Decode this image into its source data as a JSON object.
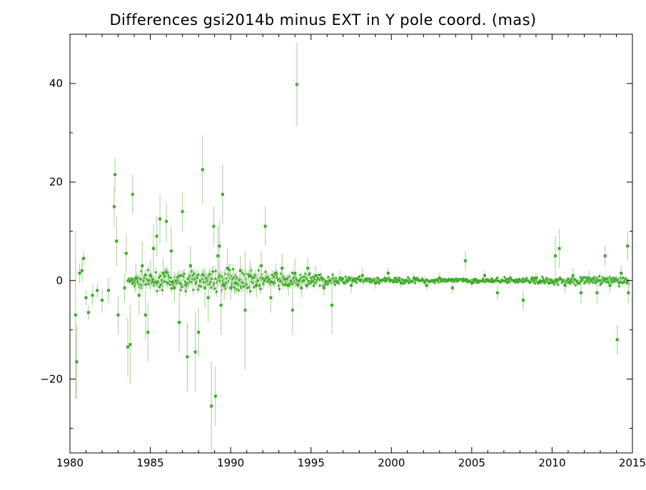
{
  "chart_data": {
    "type": "scatter",
    "title": "Differences gsi2014b minus EXT in Y pole coord. (mas)",
    "xlabel": "",
    "ylabel": "",
    "xlim": [
      1980,
      2015
    ],
    "ylim": [
      -35,
      50
    ],
    "xticks": [
      1980,
      1985,
      1990,
      1995,
      2000,
      2005,
      2010,
      2015
    ],
    "xtick_labels": [
      "1980",
      "1985",
      "1990",
      "1995",
      "2000",
      "2005",
      "2010",
      "2015"
    ],
    "yticks": [
      -20,
      0,
      20,
      40
    ],
    "ytick_labels": [
      "−20",
      "0",
      "20",
      "40"
    ],
    "grid": false,
    "point_color": "#3caa28",
    "errorbar_color": "#b4d7a6",
    "series": [
      {
        "values": [
          {
            "x": 1980.35,
            "y": -7.0,
            "err": 17.0
          },
          {
            "x": 1980.42,
            "y": -16.5,
            "err": 7.5
          },
          {
            "x": 1980.6,
            "y": 1.5,
            "err": 2.0
          },
          {
            "x": 1980.75,
            "y": 2.0,
            "err": 2.5
          },
          {
            "x": 1980.85,
            "y": 4.5,
            "err": 1.5
          },
          {
            "x": 1981.0,
            "y": -3.5,
            "err": 1.5
          },
          {
            "x": 1981.15,
            "y": -6.5,
            "err": 1.5
          },
          {
            "x": 1981.4,
            "y": -3.0,
            "err": 2.0
          },
          {
            "x": 1981.7,
            "y": -2.0,
            "err": 1.5
          },
          {
            "x": 1982.0,
            "y": -4.0,
            "err": 2.5
          },
          {
            "x": 1982.4,
            "y": -2.0,
            "err": 2.5
          },
          {
            "x": 1982.75,
            "y": 15.0,
            "err": 4.0
          },
          {
            "x": 1982.8,
            "y": 21.5,
            "err": 3.5
          },
          {
            "x": 1982.9,
            "y": 8.0,
            "err": 5.0
          },
          {
            "x": 1983.0,
            "y": -7.0,
            "err": 4.0
          },
          {
            "x": 1983.4,
            "y": -1.5,
            "err": 3.0
          },
          {
            "x": 1983.5,
            "y": 5.5,
            "err": 4.0
          },
          {
            "x": 1983.6,
            "y": -13.5,
            "err": 6.0
          },
          {
            "x": 1983.75,
            "y": -13.0,
            "err": 8.0
          },
          {
            "x": 1983.9,
            "y": 17.5,
            "err": 4.0
          },
          {
            "x": 1984.1,
            "y": 0.5,
            "err": 3.0
          },
          {
            "x": 1984.3,
            "y": -3.0,
            "err": 4.0
          },
          {
            "x": 1984.5,
            "y": 3.0,
            "err": 5.0
          },
          {
            "x": 1984.7,
            "y": -7.0,
            "err": 5.0
          },
          {
            "x": 1984.85,
            "y": -10.5,
            "err": 6.0
          },
          {
            "x": 1985.0,
            "y": 1.0,
            "err": 3.0
          },
          {
            "x": 1985.2,
            "y": 6.5,
            "err": 5.0
          },
          {
            "x": 1985.4,
            "y": 9.0,
            "err": 4.0
          },
          {
            "x": 1985.6,
            "y": 12.5,
            "err": 5.0
          },
          {
            "x": 1985.8,
            "y": 1.5,
            "err": 3.0
          },
          {
            "x": 1986.0,
            "y": 12.0,
            "err": 4.0
          },
          {
            "x": 1986.3,
            "y": 6.0,
            "err": 5.0
          },
          {
            "x": 1986.5,
            "y": -1.5,
            "err": 3.0
          },
          {
            "x": 1986.8,
            "y": -8.5,
            "err": 6.0
          },
          {
            "x": 1987.0,
            "y": 14.0,
            "err": 4.0
          },
          {
            "x": 1987.3,
            "y": -15.5,
            "err": 7.0
          },
          {
            "x": 1987.5,
            "y": 3.0,
            "err": 4.0
          },
          {
            "x": 1987.8,
            "y": -14.5,
            "err": 8.0
          },
          {
            "x": 1988.0,
            "y": -10.5,
            "err": 5.0
          },
          {
            "x": 1988.25,
            "y": 22.5,
            "err": 7.0
          },
          {
            "x": 1988.4,
            "y": -1.5,
            "err": 4.0
          },
          {
            "x": 1988.6,
            "y": -3.5,
            "err": 5.0
          },
          {
            "x": 1988.8,
            "y": -25.5,
            "err": 9.0
          },
          {
            "x": 1988.95,
            "y": 11.0,
            "err": 4.0
          },
          {
            "x": 1989.05,
            "y": -23.5,
            "err": 6.0
          },
          {
            "x": 1989.2,
            "y": 5.0,
            "err": 6.0
          },
          {
            "x": 1989.3,
            "y": 7.0,
            "err": 5.0
          },
          {
            "x": 1989.4,
            "y": -5.0,
            "err": 6.0
          },
          {
            "x": 1989.5,
            "y": 17.5,
            "err": 6.0
          },
          {
            "x": 1989.6,
            "y": -1.0,
            "err": 3.0
          },
          {
            "x": 1989.8,
            "y": 2.5,
            "err": 4.0
          },
          {
            "x": 1990.0,
            "y": -1.5,
            "err": 2.5
          },
          {
            "x": 1990.3,
            "y": -0.5,
            "err": 2.0
          },
          {
            "x": 1990.6,
            "y": 2.0,
            "err": 3.0
          },
          {
            "x": 1990.9,
            "y": -6.0,
            "err": 12.0
          },
          {
            "x": 1991.2,
            "y": 1.0,
            "err": 3.0
          },
          {
            "x": 1991.6,
            "y": -1.0,
            "err": 2.5
          },
          {
            "x": 1991.9,
            "y": 3.0,
            "err": 3.0
          },
          {
            "x": 1992.15,
            "y": 11.0,
            "err": 4.0
          },
          {
            "x": 1992.5,
            "y": -3.5,
            "err": 3.0
          },
          {
            "x": 1992.8,
            "y": 1.5,
            "err": 2.0
          },
          {
            "x": 1993.2,
            "y": 2.5,
            "err": 3.0
          },
          {
            "x": 1993.6,
            "y": -1.0,
            "err": 2.0
          },
          {
            "x": 1993.85,
            "y": -6.0,
            "err": 5.0
          },
          {
            "x": 1994.0,
            "y": 1.5,
            "err": 3.0
          },
          {
            "x": 1994.12,
            "y": 39.8,
            "err": 8.5
          },
          {
            "x": 1994.4,
            "y": -1.5,
            "err": 2.0
          },
          {
            "x": 1994.8,
            "y": 2.5,
            "err": 2.0
          },
          {
            "x": 1995.3,
            "y": 1.0,
            "err": 2.0
          },
          {
            "x": 1995.8,
            "y": -1.5,
            "err": 1.5
          },
          {
            "x": 1996.3,
            "y": -5.0,
            "err": 6.0
          },
          {
            "x": 1996.8,
            "y": 0.5,
            "err": 1.5
          },
          {
            "x": 1997.5,
            "y": -1.0,
            "err": 1.5
          },
          {
            "x": 1998.2,
            "y": 1.0,
            "err": 1.5
          },
          {
            "x": 1999.0,
            "y": -0.5,
            "err": 1.2
          },
          {
            "x": 1999.8,
            "y": 1.5,
            "err": 1.2
          },
          {
            "x": 2000.6,
            "y": -0.5,
            "err": 1.0
          },
          {
            "x": 2001.4,
            "y": 0.5,
            "err": 1.0
          },
          {
            "x": 2002.2,
            "y": -1.0,
            "err": 1.0
          },
          {
            "x": 2003.0,
            "y": 0.5,
            "err": 1.0
          },
          {
            "x": 2003.8,
            "y": -1.5,
            "err": 1.2
          },
          {
            "x": 2004.6,
            "y": 4.0,
            "err": 2.0
          },
          {
            "x": 2005.0,
            "y": -0.5,
            "err": 1.0
          },
          {
            "x": 2005.8,
            "y": 1.0,
            "err": 1.0
          },
          {
            "x": 2006.6,
            "y": -2.5,
            "err": 1.5
          },
          {
            "x": 2007.4,
            "y": 0.5,
            "err": 1.0
          },
          {
            "x": 2008.2,
            "y": -4.0,
            "err": 2.0
          },
          {
            "x": 2009.0,
            "y": 0.5,
            "err": 1.0
          },
          {
            "x": 2009.8,
            "y": -0.5,
            "err": 1.0
          },
          {
            "x": 2010.2,
            "y": 5.0,
            "err": 4.0
          },
          {
            "x": 2010.45,
            "y": 6.5,
            "err": 4.0
          },
          {
            "x": 2010.8,
            "y": -1.0,
            "err": 1.5
          },
          {
            "x": 2011.3,
            "y": 1.0,
            "err": 1.5
          },
          {
            "x": 2011.8,
            "y": -2.5,
            "err": 2.0
          },
          {
            "x": 2012.3,
            "y": 0.5,
            "err": 1.5
          },
          {
            "x": 2012.8,
            "y": -2.5,
            "err": 2.0
          },
          {
            "x": 2013.3,
            "y": 5.0,
            "err": 2.0
          },
          {
            "x": 2013.6,
            "y": -1.0,
            "err": 1.5
          },
          {
            "x": 2014.05,
            "y": -12.0,
            "err": 3.0
          },
          {
            "x": 2014.3,
            "y": 1.5,
            "err": 1.5
          },
          {
            "x": 2014.7,
            "y": 7.0,
            "err": 3.0
          },
          {
            "x": 2014.75,
            "y": -2.5,
            "err": 2.0
          }
        ],
        "dense_band": {
          "x_start": 1983.6,
          "x_end": 2014.8,
          "center": 0.0,
          "spread_points": [
            {
              "x": 1984,
              "y": 1.2
            },
            {
              "x": 1990,
              "y": 1.5
            },
            {
              "x": 1994,
              "y": 1.0
            },
            {
              "x": 1998,
              "y": 0.5
            },
            {
              "x": 2005,
              "y": 0.3
            },
            {
              "x": 2010,
              "y": 0.5
            },
            {
              "x": 2014,
              "y": 0.7
            }
          ]
        }
      }
    ]
  }
}
